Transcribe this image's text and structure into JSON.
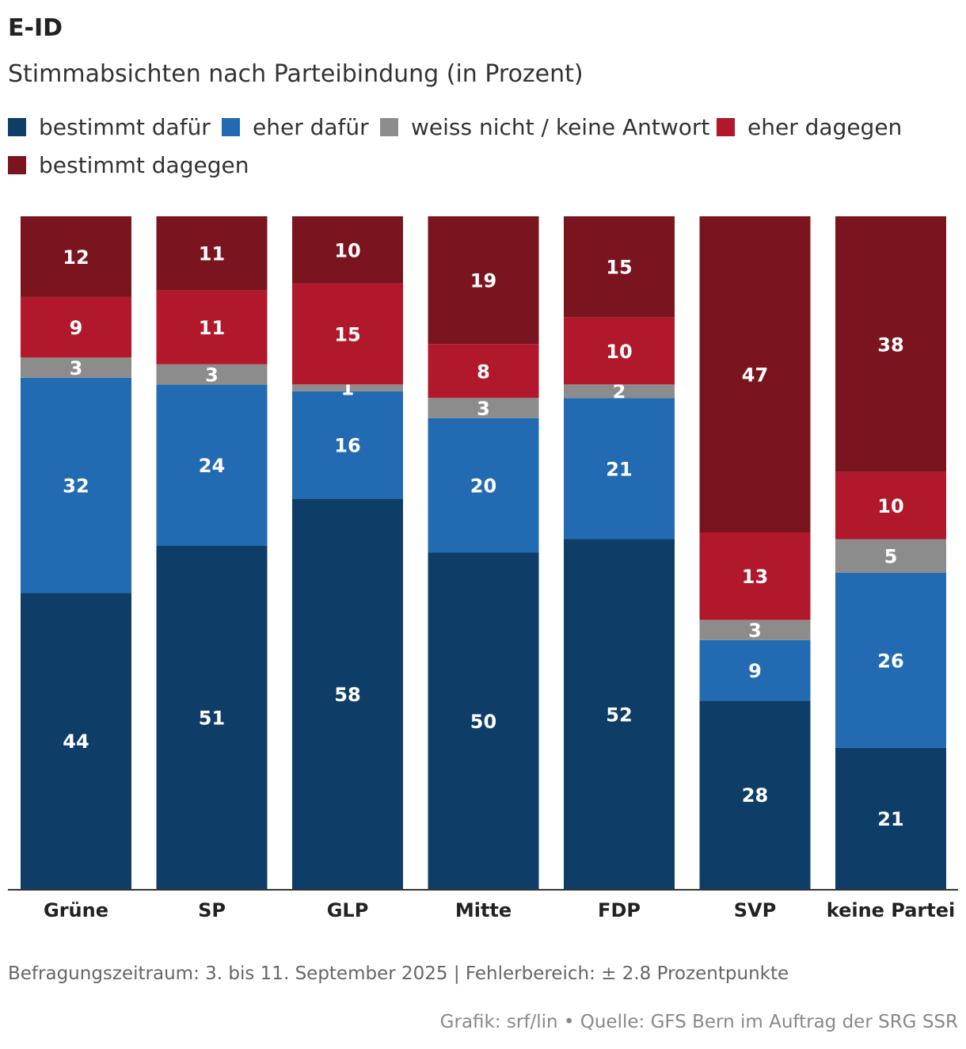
{
  "header": {
    "title": "E-ID",
    "subtitle": "Stimmabsichten nach Parteibindung (in Prozent)"
  },
  "chart_data": {
    "type": "bar",
    "stacked": true,
    "title": "E-ID",
    "subtitle": "Stimmabsichten nach Parteibindung (in Prozent)",
    "xlabel": "",
    "ylabel": "",
    "ylim": [
      0,
      100
    ],
    "grid": false,
    "legend_position": "top-left",
    "categories": [
      "Grüne",
      "SP",
      "GLP",
      "Mitte",
      "FDP",
      "SVP",
      "keine Partei"
    ],
    "series": [
      {
        "name": "bestimmt dafür",
        "color": "#0e3d68",
        "values": [
          44,
          51,
          58,
          50,
          52,
          28,
          21
        ]
      },
      {
        "name": "eher dafür",
        "color": "#226bb2",
        "values": [
          32,
          24,
          16,
          20,
          21,
          9,
          26
        ]
      },
      {
        "name": "weiss nicht / keine Antwort",
        "color": "#8c8c8c",
        "values": [
          3,
          3,
          1,
          3,
          2,
          3,
          5
        ]
      },
      {
        "name": "eher dagegen",
        "color": "#b2182b",
        "values": [
          9,
          11,
          15,
          8,
          10,
          13,
          10
        ]
      },
      {
        "name": "bestimmt dagegen",
        "color": "#7a141e",
        "values": [
          12,
          11,
          10,
          19,
          15,
          47,
          38
        ]
      }
    ]
  },
  "footer": {
    "note": "Befragungszeitraum: 3. bis 11. September 2025 | Fehlerbereich: ± 2.8 Prozentpunkte",
    "credit": "Grafik: srf/lin • Quelle: GFS Bern im Auftrag der SRG SSR"
  }
}
